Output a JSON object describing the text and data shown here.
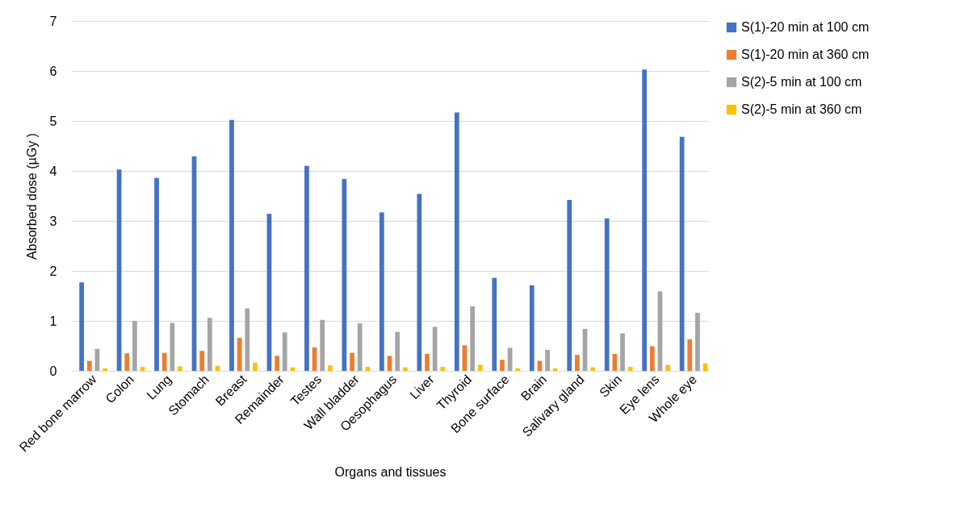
{
  "chart_data": {
    "type": "bar",
    "xlabel": "Organs and tissues",
    "ylabel": "Absorbed dose (µGy )",
    "categories": [
      "Red bone marrow",
      "Colon",
      "Lung",
      "Stomach",
      "Breast",
      "Remainder",
      "Testes",
      "Wall bladder",
      "Oesophagus",
      "Liver",
      "Thyroid",
      "Bone surface",
      "Brain",
      "Salivary gland",
      "Skin",
      "Eye lens",
      "Whole eye"
    ],
    "series": [
      {
        "name": "S(1)-20 min at 100 cm",
        "color": "#4472c4",
        "values": [
          1.77,
          4.03,
          3.86,
          4.29,
          5.02,
          3.14,
          4.1,
          3.84,
          3.17,
          3.54,
          5.17,
          1.86,
          1.71,
          3.42,
          3.05,
          6.03,
          4.68
        ]
      },
      {
        "name": "S(1)-20 min at 360 cm",
        "color": "#ed7d31",
        "values": [
          0.2,
          0.35,
          0.36,
          0.4,
          0.66,
          0.3,
          0.47,
          0.36,
          0.3,
          0.34,
          0.51,
          0.22,
          0.2,
          0.32,
          0.34,
          0.49,
          0.63
        ]
      },
      {
        "name": "S(2)-5 min at 100 cm",
        "color": "#a5a5a5",
        "values": [
          0.44,
          1.0,
          0.96,
          1.06,
          1.25,
          0.77,
          1.02,
          0.95,
          0.78,
          0.88,
          1.29,
          0.46,
          0.42,
          0.84,
          0.75,
          1.59,
          1.16
        ]
      },
      {
        "name": "S(2)-5 min at 360 cm",
        "color": "#ffc000",
        "values": [
          0.05,
          0.08,
          0.09,
          0.1,
          0.16,
          0.07,
          0.11,
          0.08,
          0.07,
          0.08,
          0.12,
          0.05,
          0.05,
          0.07,
          0.08,
          0.12,
          0.15
        ]
      }
    ],
    "ylim": [
      0,
      7
    ],
    "yticks": [
      0,
      1,
      2,
      3,
      4,
      5,
      6,
      7
    ],
    "grid": "y",
    "legend": "right"
  }
}
